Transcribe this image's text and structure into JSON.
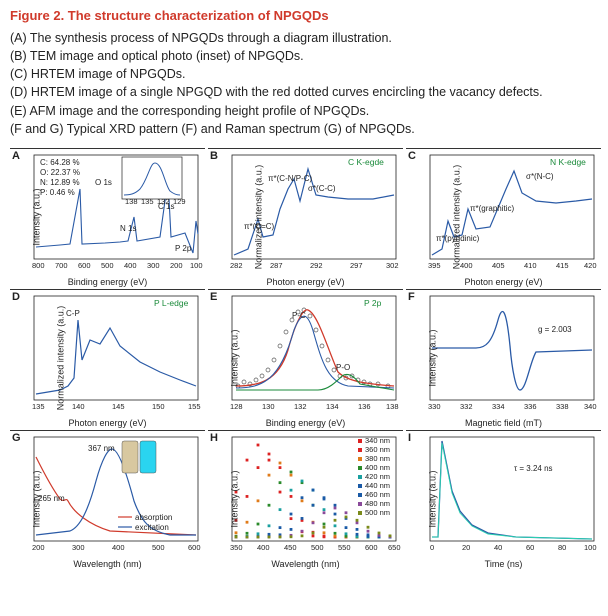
{
  "title_color": "#d03a2b",
  "line_color": "#2a5aa6",
  "accent_green": "#1a8a3a",
  "accent_red": "#d03a2b",
  "figure_title": "Figure 2. The structure characterization of NPGQDs",
  "captions": [
    "(A) The synthesis process of NPGQDs through a diagram illustration.",
    "(B) TEM image and optical photo (inset) of NPGQDs.",
    "(C) HRTEM image of NPGQDs.",
    "(D) HRTEM image of a single NPGQD with the red dotted curves encircling the vacancy defects.",
    "(E) AFM image and the corresponding height profile of NPGQDs.",
    "(F and G) Typical XRD pattern (F) and Raman spectrum (G) of NPGQDs."
  ],
  "panels": {
    "A": {
      "letter": "A",
      "ylabel": "Intensity (a.u.)",
      "xlabel": "Binding energy (eV)",
      "xticks": [
        "800",
        "700",
        "600",
        "500",
        "400",
        "300",
        "200",
        "100"
      ],
      "composition": [
        "C: 64.28 %",
        "O: 22.37 %",
        "N: 12.89 %",
        "P: 0.46 %"
      ],
      "peaks": {
        "o1s": "O 1s",
        "c1s": "C 1s",
        "n1s": "N 1s",
        "p2p": "P 2p"
      },
      "inset_xticks": [
        "138",
        "135",
        "132",
        "129"
      ]
    },
    "B": {
      "letter": "B",
      "ylabel": "Normalized intensity (a.u.)",
      "xlabel": "Photon energy (eV)",
      "xticks": [
        "282",
        "287",
        "292",
        "297",
        "302"
      ],
      "title": "C K-egde",
      "anno": {
        "pi_cc": "π*(C=C)",
        "pi_cnpc": "π*(C-N/P-C)",
        "sigma_cc": "σ*(C-C)"
      }
    },
    "C": {
      "letter": "C",
      "ylabel": "Normalized intensity (a.u.)",
      "xlabel": "Photon energy (eV)",
      "xticks": [
        "395",
        "400",
        "405",
        "410",
        "415",
        "420"
      ],
      "title": "N K-edge",
      "anno": {
        "pyr": "π*(pyridinic)",
        "gra": "π*(graphitic)",
        "nc": "σ*(N-C)"
      }
    },
    "D": {
      "letter": "D",
      "ylabel": "Normalized intensity (a.u.)",
      "xlabel": "Photon energy (eV)",
      "xticks": [
        "135",
        "140",
        "145",
        "150",
        "155"
      ],
      "title": "P L-edge",
      "anno": {
        "cp": "C-P"
      }
    },
    "E": {
      "letter": "E",
      "ylabel": "Intensity (a.u.)",
      "xlabel": "Binding energy (eV)",
      "xticks": [
        "128",
        "130",
        "132",
        "134",
        "136",
        "138"
      ],
      "title": "P 2p",
      "anno": {
        "pc": "P-C",
        "po": "P-O"
      }
    },
    "F": {
      "letter": "F",
      "ylabel": "Intensity (a.u.)",
      "xlabel": "Magnetic field (mT)",
      "xticks": [
        "330",
        "332",
        "334",
        "336",
        "338",
        "340"
      ],
      "anno": {
        "g": "g = 2.003"
      }
    },
    "G": {
      "letter": "G",
      "ylabel": "Intensity (a.u.)",
      "xlabel": "Wavelength (nm)",
      "xticks": [
        "200",
        "300",
        "400",
        "500",
        "600"
      ],
      "anno": {
        "p265": "265 nm",
        "p367": "367 nm",
        "abs": "absorption",
        "exc": "excitation"
      }
    },
    "H": {
      "letter": "H",
      "ylabel": "Intensity (a.u.)",
      "xlabel": "Wavelength (nm)",
      "xticks": [
        "350",
        "400",
        "450",
        "500",
        "550",
        "600",
        "650"
      ],
      "legend": [
        "340 nm",
        "360 nm",
        "380 nm",
        "400 nm",
        "420 nm",
        "440 nm",
        "460 nm",
        "480 nm",
        "500 nm"
      ],
      "legend_colors": [
        "#d22",
        "#d22",
        "#e07b1a",
        "#2a8a2a",
        "#1aa0a0",
        "#1a5aa6",
        "#1a5aa6",
        "#8a4a9a",
        "#7a8a1a"
      ]
    },
    "I": {
      "letter": "I",
      "ylabel": "Intensity (a.u.)",
      "xlabel": "Time (ns)",
      "xticks": [
        "0",
        "20",
        "40",
        "60",
        "80",
        "100"
      ],
      "anno": {
        "tau": "τ = 3.24 ns"
      }
    }
  }
}
